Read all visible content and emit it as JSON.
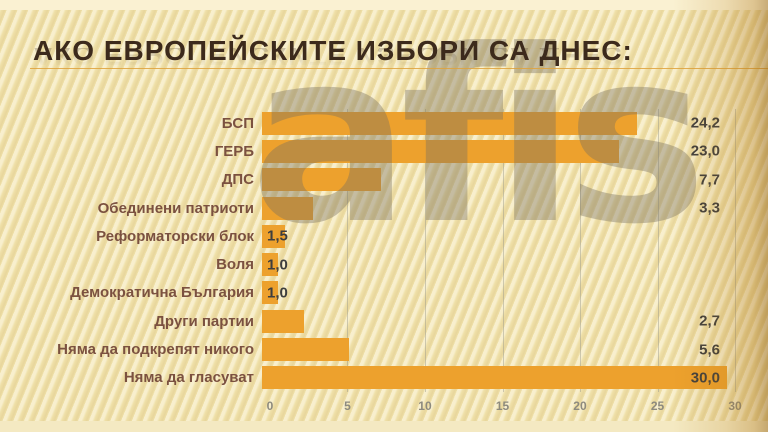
{
  "slide": {
    "title": "АКО ЕВРОПЕЙСКИТЕ ИЗБОРИ СА ДНЕС:",
    "watermark": "afis"
  },
  "chart_data": {
    "type": "bar",
    "orientation": "horizontal",
    "title": "АКО ЕВРОПЕЙСКИТЕ ИЗБОРИ СА ДНЕС:",
    "categories": [
      "БСП",
      "ГЕРБ",
      "ДПС",
      "Обединени патриоти",
      "Реформаторски блок",
      "Воля",
      "Демократична България",
      "Други партии",
      "Няма да подкрепят никого",
      "Няма да гласуват"
    ],
    "values": [
      24.2,
      23.0,
      7.7,
      3.3,
      1.5,
      1.0,
      1.0,
      2.7,
      5.6,
      30.0
    ],
    "value_labels": [
      "24,2",
      "23,0",
      "7,7",
      "3,3",
      "1,5",
      "1,0",
      "1,0",
      "2,7",
      "5,6",
      "30,0"
    ],
    "xlabel": "",
    "ylabel": "",
    "xlim": [
      0,
      30
    ],
    "x_ticks": [
      0,
      5,
      10,
      15,
      20,
      25,
      30
    ],
    "grid": true,
    "legend": false,
    "colors": {
      "bar": "#eda12d",
      "category_label": "#7b5140",
      "value_label": "#3e3e3e",
      "title": "#3c2a1c",
      "accent_line": "#dfa23c",
      "tick_label": "#8d8a7e"
    }
  }
}
